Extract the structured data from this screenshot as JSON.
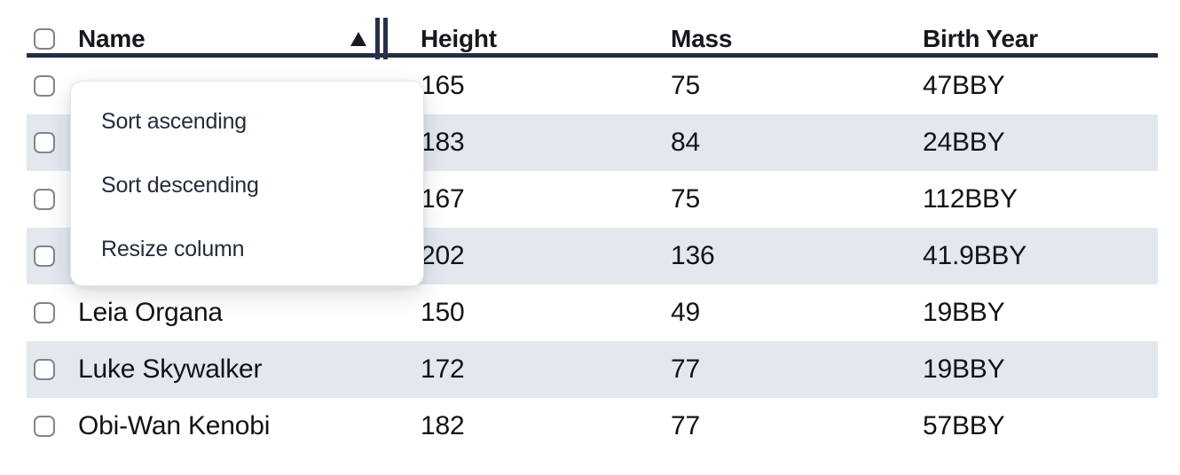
{
  "table": {
    "columns": [
      {
        "key": "name",
        "label": "Name"
      },
      {
        "key": "height",
        "label": "Height"
      },
      {
        "key": "mass",
        "label": "Mass"
      },
      {
        "key": "birth_year",
        "label": "Birth Year"
      }
    ],
    "sort": {
      "column": "Name",
      "direction": "ascending"
    },
    "rows": [
      {
        "name": "",
        "height": "165",
        "mass": "75",
        "birth_year": "47BBY"
      },
      {
        "name": "",
        "height": "183",
        "mass": "84",
        "birth_year": "24BBY"
      },
      {
        "name": "",
        "height": "167",
        "mass": "75",
        "birth_year": "112BBY"
      },
      {
        "name": "",
        "height": "202",
        "mass": "136",
        "birth_year": "41.9BBY"
      },
      {
        "name": "Leia Organa",
        "height": "150",
        "mass": "49",
        "birth_year": "19BBY"
      },
      {
        "name": "Luke Skywalker",
        "height": "172",
        "mass": "77",
        "birth_year": "19BBY"
      },
      {
        "name": "Obi-Wan Kenobi",
        "height": "182",
        "mass": "77",
        "birth_year": "57BBY"
      }
    ]
  },
  "context_menu": {
    "items": [
      {
        "label": "Sort ascending"
      },
      {
        "label": "Sort descending"
      },
      {
        "label": "Resize column"
      }
    ]
  },
  "icons": {
    "sort_indicator": "sort-ascending-triangle",
    "resize": "double-bar-resize-handle"
  },
  "colors": {
    "header-text": "#15181e",
    "cell-text": "#111317",
    "stripe": "#e3e8ef",
    "header-border": "#222d41",
    "bars": "#26304a",
    "triangle": "#171b22",
    "menu-text": "#232c3c",
    "menu-border": "#e3e6ea",
    "checkbox-border": "#7f8590"
  }
}
